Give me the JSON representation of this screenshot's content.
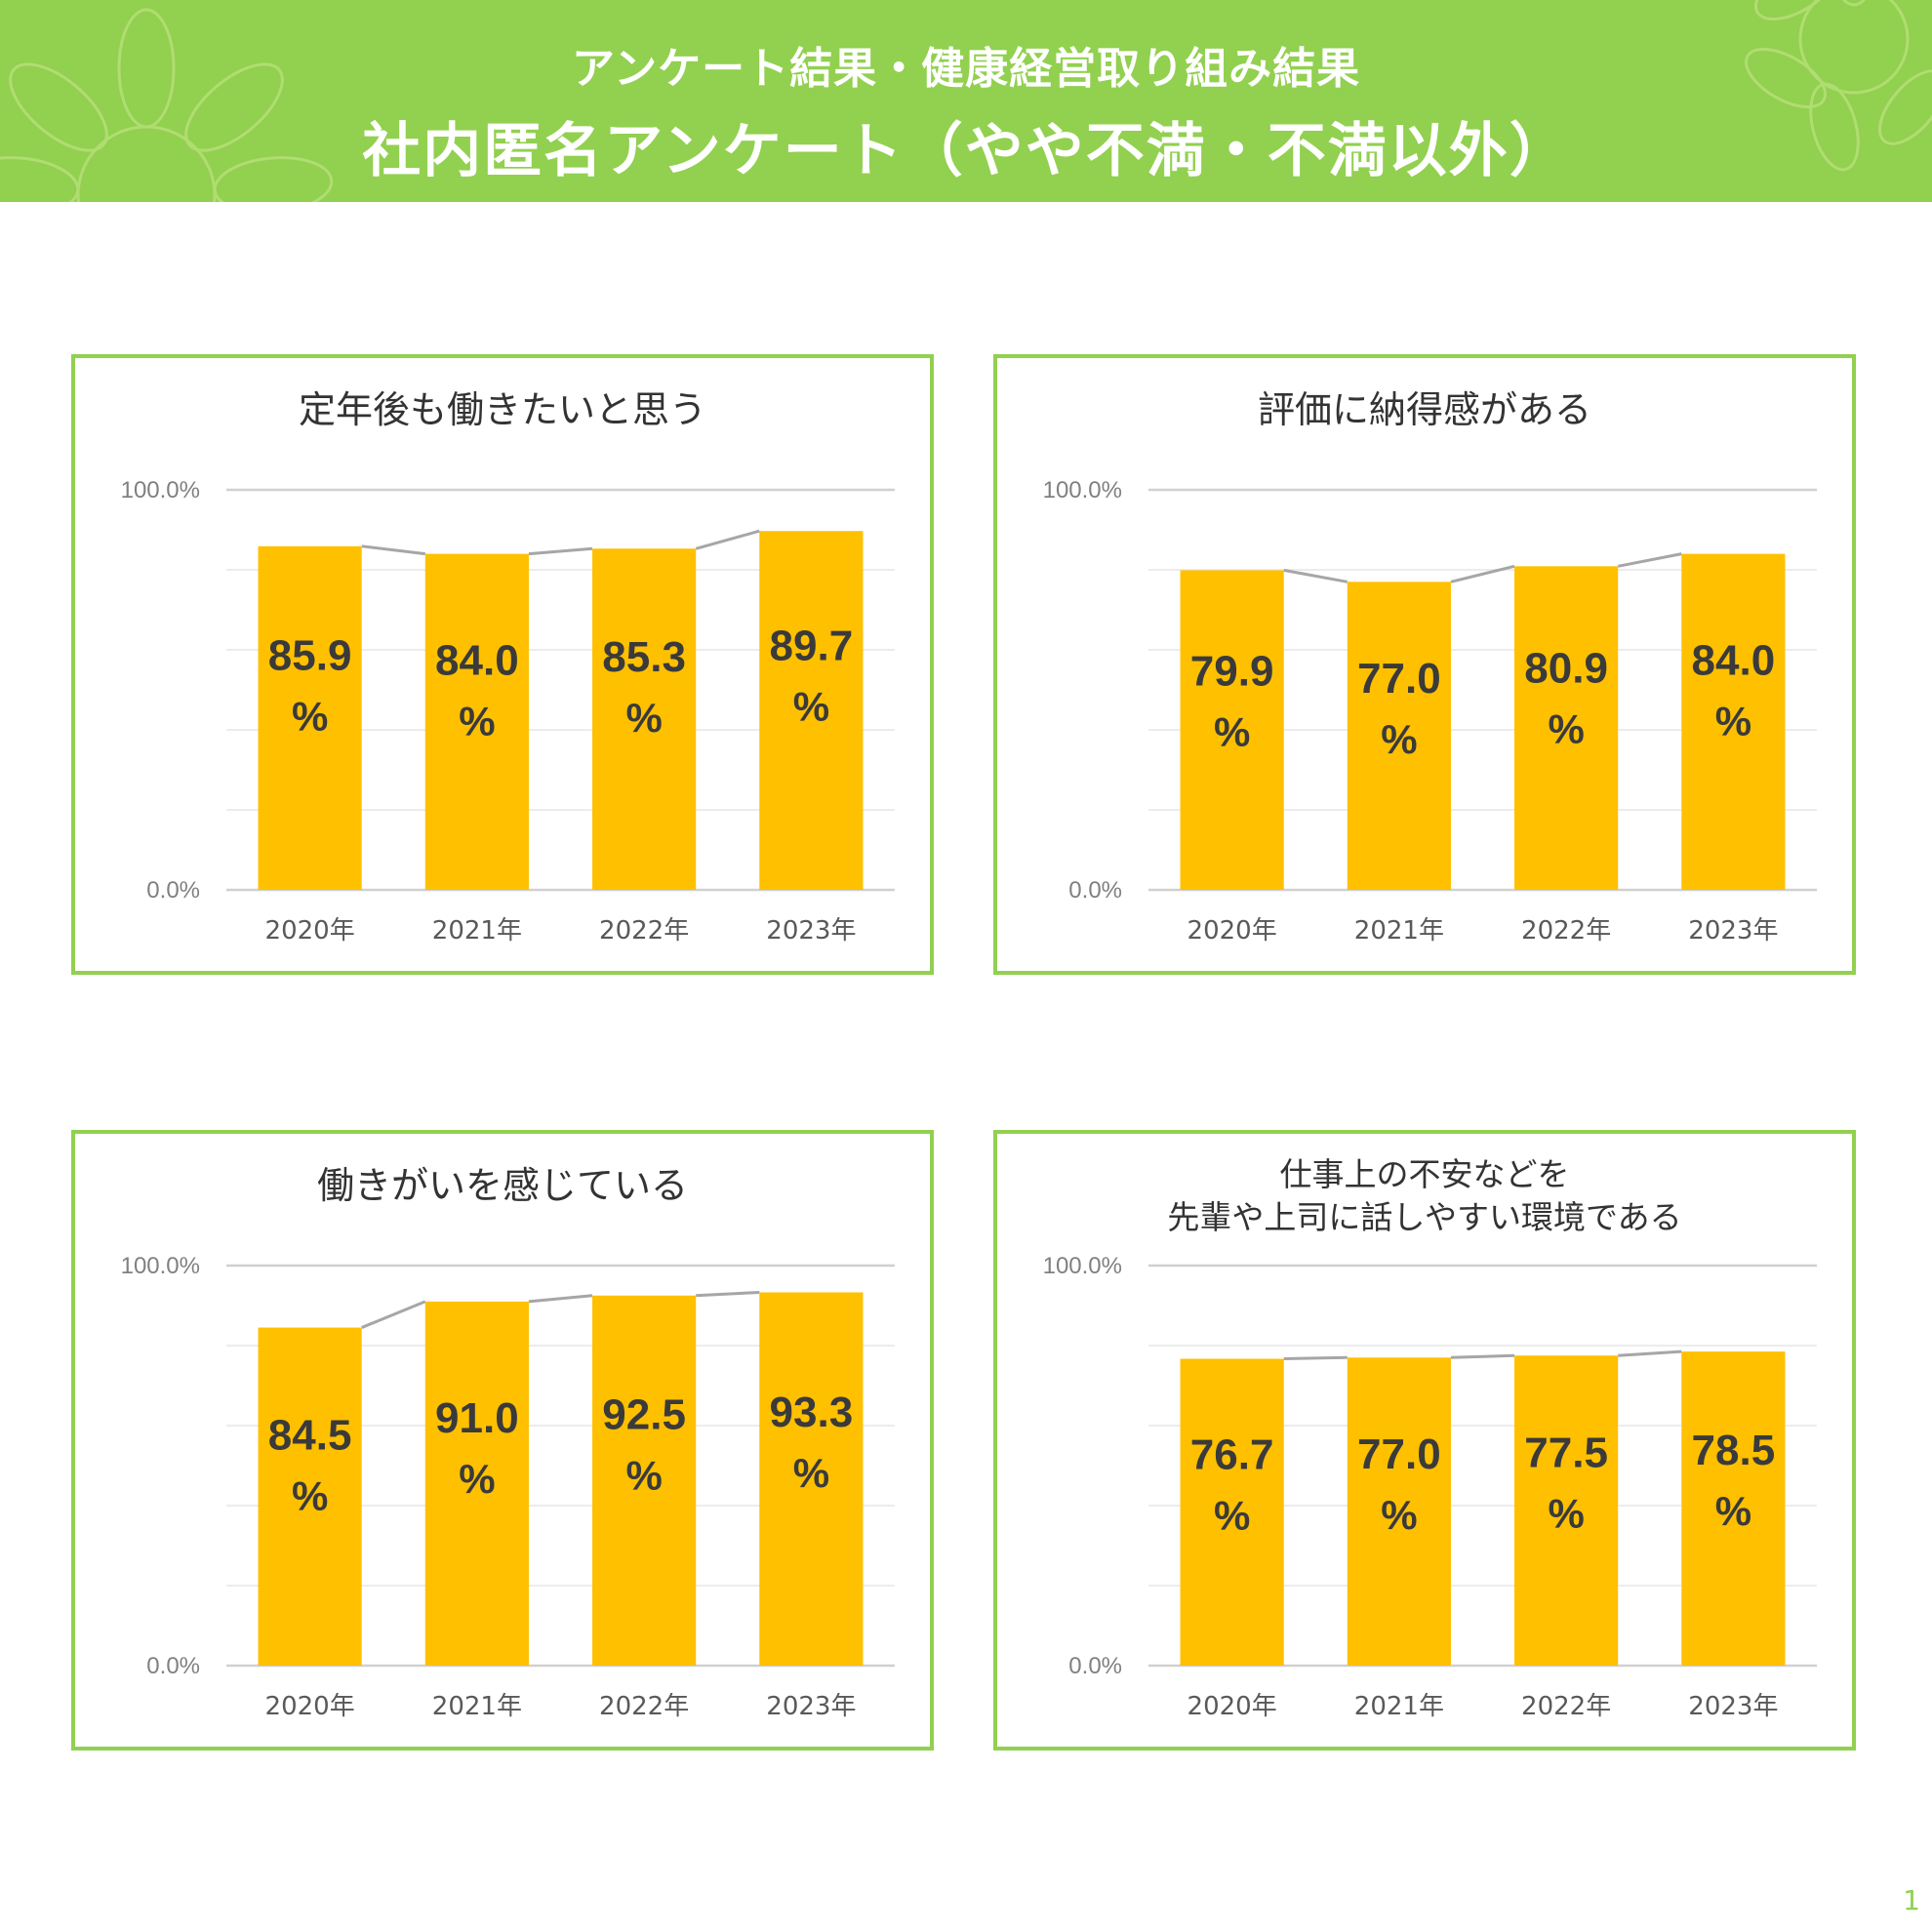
{
  "header": {
    "subtitle": "アンケート結果・健康経営取り組み結果",
    "title": "社内匿名アンケート（やや不満・不満以外）"
  },
  "page_number": "1",
  "colors": {
    "header_bg": "#92d050",
    "panel_border": "#92d050",
    "bar": "#ffc000",
    "line": "#a6a6a6",
    "grid": "#d9d9d9"
  },
  "chart_data": [
    {
      "type": "bar",
      "title": "定年後も働きたいと思う",
      "categories": [
        "2020年",
        "2021年",
        "2022年",
        "2023年"
      ],
      "values": [
        85.9,
        84.0,
        85.3,
        89.7
      ],
      "value_labels": [
        "85.9",
        "84.0",
        "85.3",
        "89.7"
      ],
      "unit": "%",
      "ylim": [
        0,
        100
      ],
      "y_ticks": [
        "0.0%",
        "100.0%"
      ],
      "overlay": "line connecting bar tops",
      "grid": true
    },
    {
      "type": "bar",
      "title": "評価に納得感がある",
      "categories": [
        "2020年",
        "2021年",
        "2022年",
        "2023年"
      ],
      "values": [
        79.9,
        77.0,
        80.9,
        84.0
      ],
      "value_labels": [
        "79.9",
        "77.0",
        "80.9",
        "84.0"
      ],
      "unit": "%",
      "ylim": [
        0,
        100
      ],
      "y_ticks": [
        "0.0%",
        "100.0%"
      ],
      "overlay": "line connecting bar tops",
      "grid": true
    },
    {
      "type": "bar",
      "title": "働きがいを感じている",
      "categories": [
        "2020年",
        "2021年",
        "2022年",
        "2023年"
      ],
      "values": [
        84.5,
        91.0,
        92.5,
        93.3
      ],
      "value_labels": [
        "84.5",
        "91.0",
        "92.5",
        "93.3"
      ],
      "unit": "%",
      "ylim": [
        0,
        100
      ],
      "y_ticks": [
        "0.0%",
        "100.0%"
      ],
      "overlay": "line connecting bar tops",
      "grid": true
    },
    {
      "type": "bar",
      "title": [
        "仕事上の不安などを",
        "先輩や上司に話しやすい環境である"
      ],
      "categories": [
        "2020年",
        "2021年",
        "2022年",
        "2023年"
      ],
      "values": [
        76.7,
        77.0,
        77.5,
        78.5
      ],
      "value_labels": [
        "76.7",
        "77.0",
        "77.5",
        "78.5"
      ],
      "unit": "%",
      "ylim": [
        0,
        100
      ],
      "y_ticks": [
        "0.0%",
        "100.0%"
      ],
      "overlay": "line connecting bar tops",
      "grid": true
    }
  ]
}
